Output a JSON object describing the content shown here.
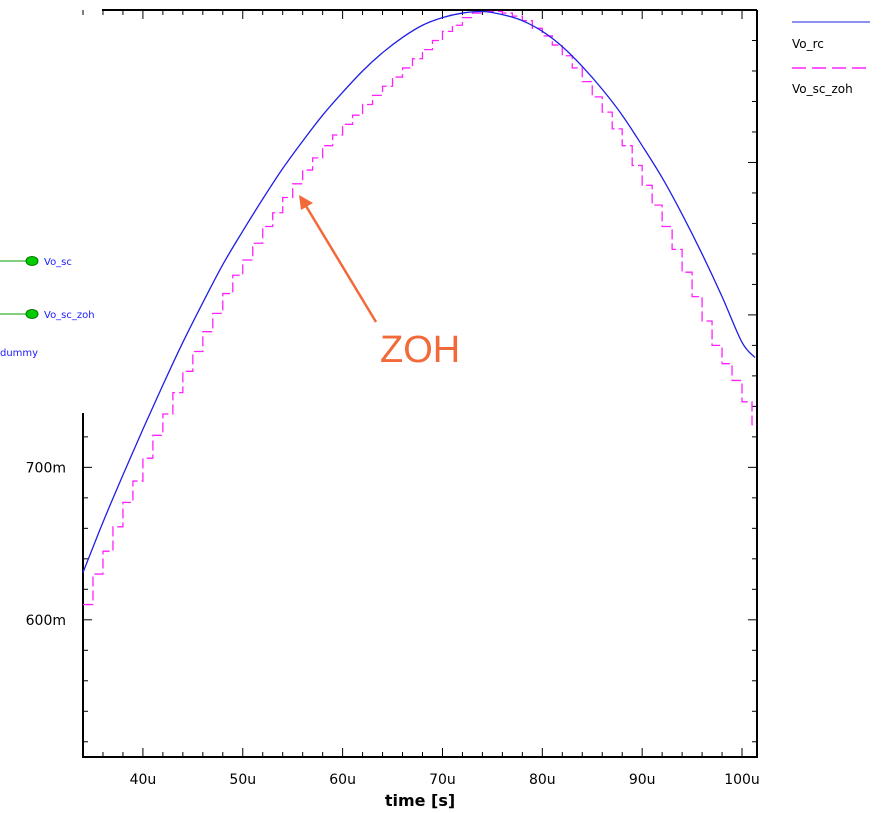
{
  "chart_data": {
    "type": "line",
    "xlabel": "time [s]",
    "x_range": [
      34,
      101.5
    ],
    "y_range": [
      510,
      1000
    ],
    "x_ticks": [
      {
        "value": 40,
        "label": "40u"
      },
      {
        "value": 50,
        "label": "50u"
      },
      {
        "value": 60,
        "label": "60u"
      },
      {
        "value": 70,
        "label": "70u"
      },
      {
        "value": 80,
        "label": "80u"
      },
      {
        "value": 90,
        "label": "90u"
      },
      {
        "value": 100,
        "label": "100u"
      }
    ],
    "y_ticks": [
      {
        "value": 600,
        "label": "600m"
      },
      {
        "value": 700,
        "label": "700m"
      }
    ],
    "series": [
      {
        "name": "Vo_rc",
        "color": "#1f1fe6",
        "style": "solid",
        "x": [
          34,
          36,
          38,
          40,
          42,
          44,
          46,
          48,
          50,
          52,
          54,
          56,
          58,
          60,
          62,
          64,
          66,
          68,
          70,
          72,
          74,
          76,
          78,
          80,
          82,
          84,
          86,
          88,
          90,
          92,
          94,
          96,
          98,
          100,
          101.3
        ],
        "y": [
          631,
          664,
          695,
          725,
          754,
          782,
          808,
          833,
          855,
          876,
          896,
          914,
          931,
          946,
          960,
          972,
          982,
          990,
          995,
          998,
          999,
          997,
          993,
          986,
          976,
          963,
          948,
          931,
          911,
          890,
          866,
          840,
          812,
          782,
          772
        ]
      },
      {
        "name": "Vo_sc_zoh",
        "color": "#ff22ff",
        "style": "dashed-step",
        "x": [
          34,
          35,
          36,
          37,
          38,
          39,
          40,
          41,
          42,
          43,
          44,
          45,
          46,
          47,
          48,
          49,
          50,
          51,
          52,
          53,
          54,
          55,
          56,
          57,
          58,
          59,
          60,
          61,
          62,
          63,
          64,
          65,
          66,
          67,
          68,
          69,
          70,
          71,
          72,
          73,
          74,
          75,
          76,
          77,
          78,
          79,
          80,
          81,
          82,
          83,
          84,
          85,
          86,
          87,
          88,
          89,
          90,
          91,
          92,
          93,
          94,
          95,
          96,
          97,
          98,
          99,
          100,
          101
        ],
        "y": [
          610,
          630,
          645,
          661,
          677,
          691,
          706,
          721,
          735,
          749,
          763,
          776,
          789,
          801,
          814,
          826,
          836,
          847,
          858,
          867,
          877,
          886,
          895,
          903,
          911,
          918,
          925,
          931,
          938,
          944,
          950,
          956,
          962,
          968,
          974,
          980,
          986,
          990,
          995,
          998,
          999,
          999,
          998,
          996,
          993,
          988,
          983,
          977,
          970,
          962,
          953,
          943,
          933,
          922,
          911,
          898,
          885,
          872,
          858,
          843,
          828,
          812,
          796,
          780,
          768,
          757,
          743,
          728
        ]
      }
    ],
    "legend": {
      "placement": "top-right"
    }
  },
  "schematic_labels": {
    "vo_sc": "Vo_sc",
    "vo_sc_zoh": "Vo_sc_zoh",
    "dummy": "dummy"
  },
  "annotation": {
    "text": "ZOH",
    "color": "#f26a3a"
  }
}
